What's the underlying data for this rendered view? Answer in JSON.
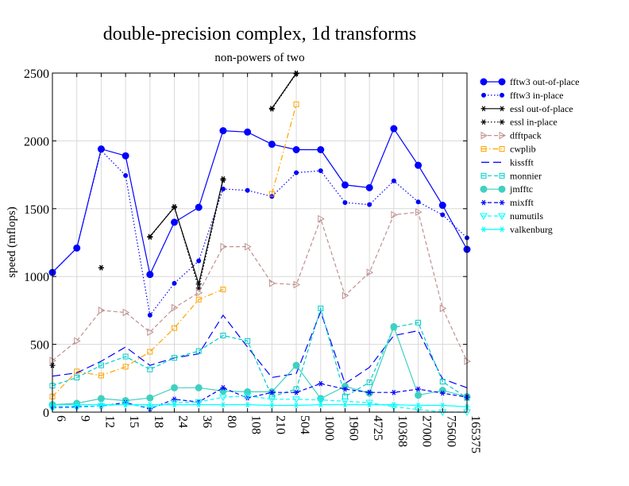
{
  "chart_data": {
    "type": "line",
    "title": "double-precision complex, 1d transforms",
    "subtitle": "non-powers of two",
    "xlabel": "",
    "ylabel": "speed (mflops)",
    "ylim": [
      0,
      2500
    ],
    "yticks": [
      0,
      500,
      1000,
      1500,
      2000,
      2500
    ],
    "grid": true,
    "legend_position": "right",
    "categories": [
      "6",
      "9",
      "12",
      "15",
      "18",
      "24",
      "36",
      "80",
      "108",
      "210",
      "504",
      "1000",
      "1960",
      "4725",
      "10368",
      "27000",
      "75600",
      "165375"
    ],
    "series": [
      {
        "name": "fftw3 out-of-place",
        "color": "#0000ff",
        "dash": "solid",
        "marker": "circle-filled-large",
        "values": [
          1030,
          1210,
          1940,
          1890,
          1015,
          1400,
          1510,
          2075,
          2065,
          1975,
          1935,
          1935,
          1675,
          1655,
          2090,
          1820,
          1525,
          1200
        ]
      },
      {
        "name": "fftw3 in-place",
        "color": "#0000ff",
        "dash": "dotted",
        "marker": "circle-filled-small",
        "values": [
          1030,
          1210,
          1930,
          1745,
          715,
          950,
          1115,
          1645,
          1635,
          1590,
          1765,
          1780,
          1545,
          1530,
          1705,
          1550,
          1455,
          1285
        ]
      },
      {
        "name": "essl out-of-place",
        "color": "#000000",
        "dash": "solid",
        "marker": "asterisk",
        "values": [
          345,
          null,
          1065,
          null,
          1295,
          1510,
          945,
          1720,
          null,
          2240,
          2500,
          null,
          null,
          null,
          null,
          null,
          null,
          null
        ]
      },
      {
        "name": "essl in-place",
        "color": "#000000",
        "dash": "dotted",
        "marker": "asterisk",
        "values": [
          345,
          null,
          1065,
          null,
          1290,
          1515,
          915,
          1710,
          null,
          2235,
          2495,
          null,
          null,
          null,
          null,
          null,
          null,
          null
        ]
      },
      {
        "name": "dfftpack",
        "color": "#c09090",
        "dash": "dashed",
        "marker": "triangle-right",
        "values": [
          380,
          525,
          750,
          735,
          590,
          770,
          880,
          1220,
          1220,
          950,
          940,
          1425,
          860,
          1030,
          1455,
          1475,
          765,
          375
        ]
      },
      {
        "name": "cwplib",
        "color": "#ffa500",
        "dash": "dashdot",
        "marker": "square",
        "values": [
          115,
          300,
          270,
          335,
          445,
          620,
          830,
          905,
          null,
          1610,
          2270,
          null,
          null,
          null,
          null,
          null,
          null,
          null
        ]
      },
      {
        "name": "kissfft",
        "color": "#0000ff",
        "dash": "longdash",
        "marker": "none",
        "values": [
          265,
          290,
          375,
          480,
          345,
          400,
          430,
          715,
          480,
          255,
          285,
          740,
          210,
          330,
          565,
          600,
          245,
          180
        ]
      },
      {
        "name": "monnier",
        "color": "#00cccc",
        "dash": "dashed",
        "marker": "square",
        "values": [
          195,
          255,
          345,
          410,
          315,
          400,
          450,
          565,
          525,
          115,
          170,
          765,
          115,
          220,
          625,
          660,
          225,
          105
        ]
      },
      {
        "name": "jmfftc",
        "color": "#40d0c0",
        "dash": "solid",
        "marker": "circle-filled-large",
        "values": [
          55,
          65,
          100,
          85,
          105,
          180,
          180,
          155,
          150,
          150,
          345,
          100,
          190,
          140,
          630,
          125,
          160,
          115
        ]
      },
      {
        "name": "mixfft",
        "color": "#0000ff",
        "dash": "dashed",
        "marker": "asterisk",
        "values": [
          35,
          40,
          45,
          70,
          25,
          95,
          75,
          180,
          105,
          145,
          145,
          210,
          170,
          145,
          145,
          170,
          140,
          110
        ]
      },
      {
        "name": "numutils",
        "color": "#00ffff",
        "dash": "dashed",
        "marker": "triangle-down",
        "values": [
          30,
          35,
          45,
          60,
          35,
          70,
          75,
          110,
          120,
          95,
          95,
          90,
          80,
          70,
          40,
          20,
          0,
          0
        ]
      },
      {
        "name": "valkenburg",
        "color": "#00ffff",
        "dash": "solid",
        "marker": "asterisk",
        "values": [
          55,
          55,
          55,
          55,
          55,
          55,
          55,
          55,
          55,
          50,
          50,
          55,
          55,
          55,
          55,
          50,
          50,
          40
        ]
      }
    ]
  }
}
